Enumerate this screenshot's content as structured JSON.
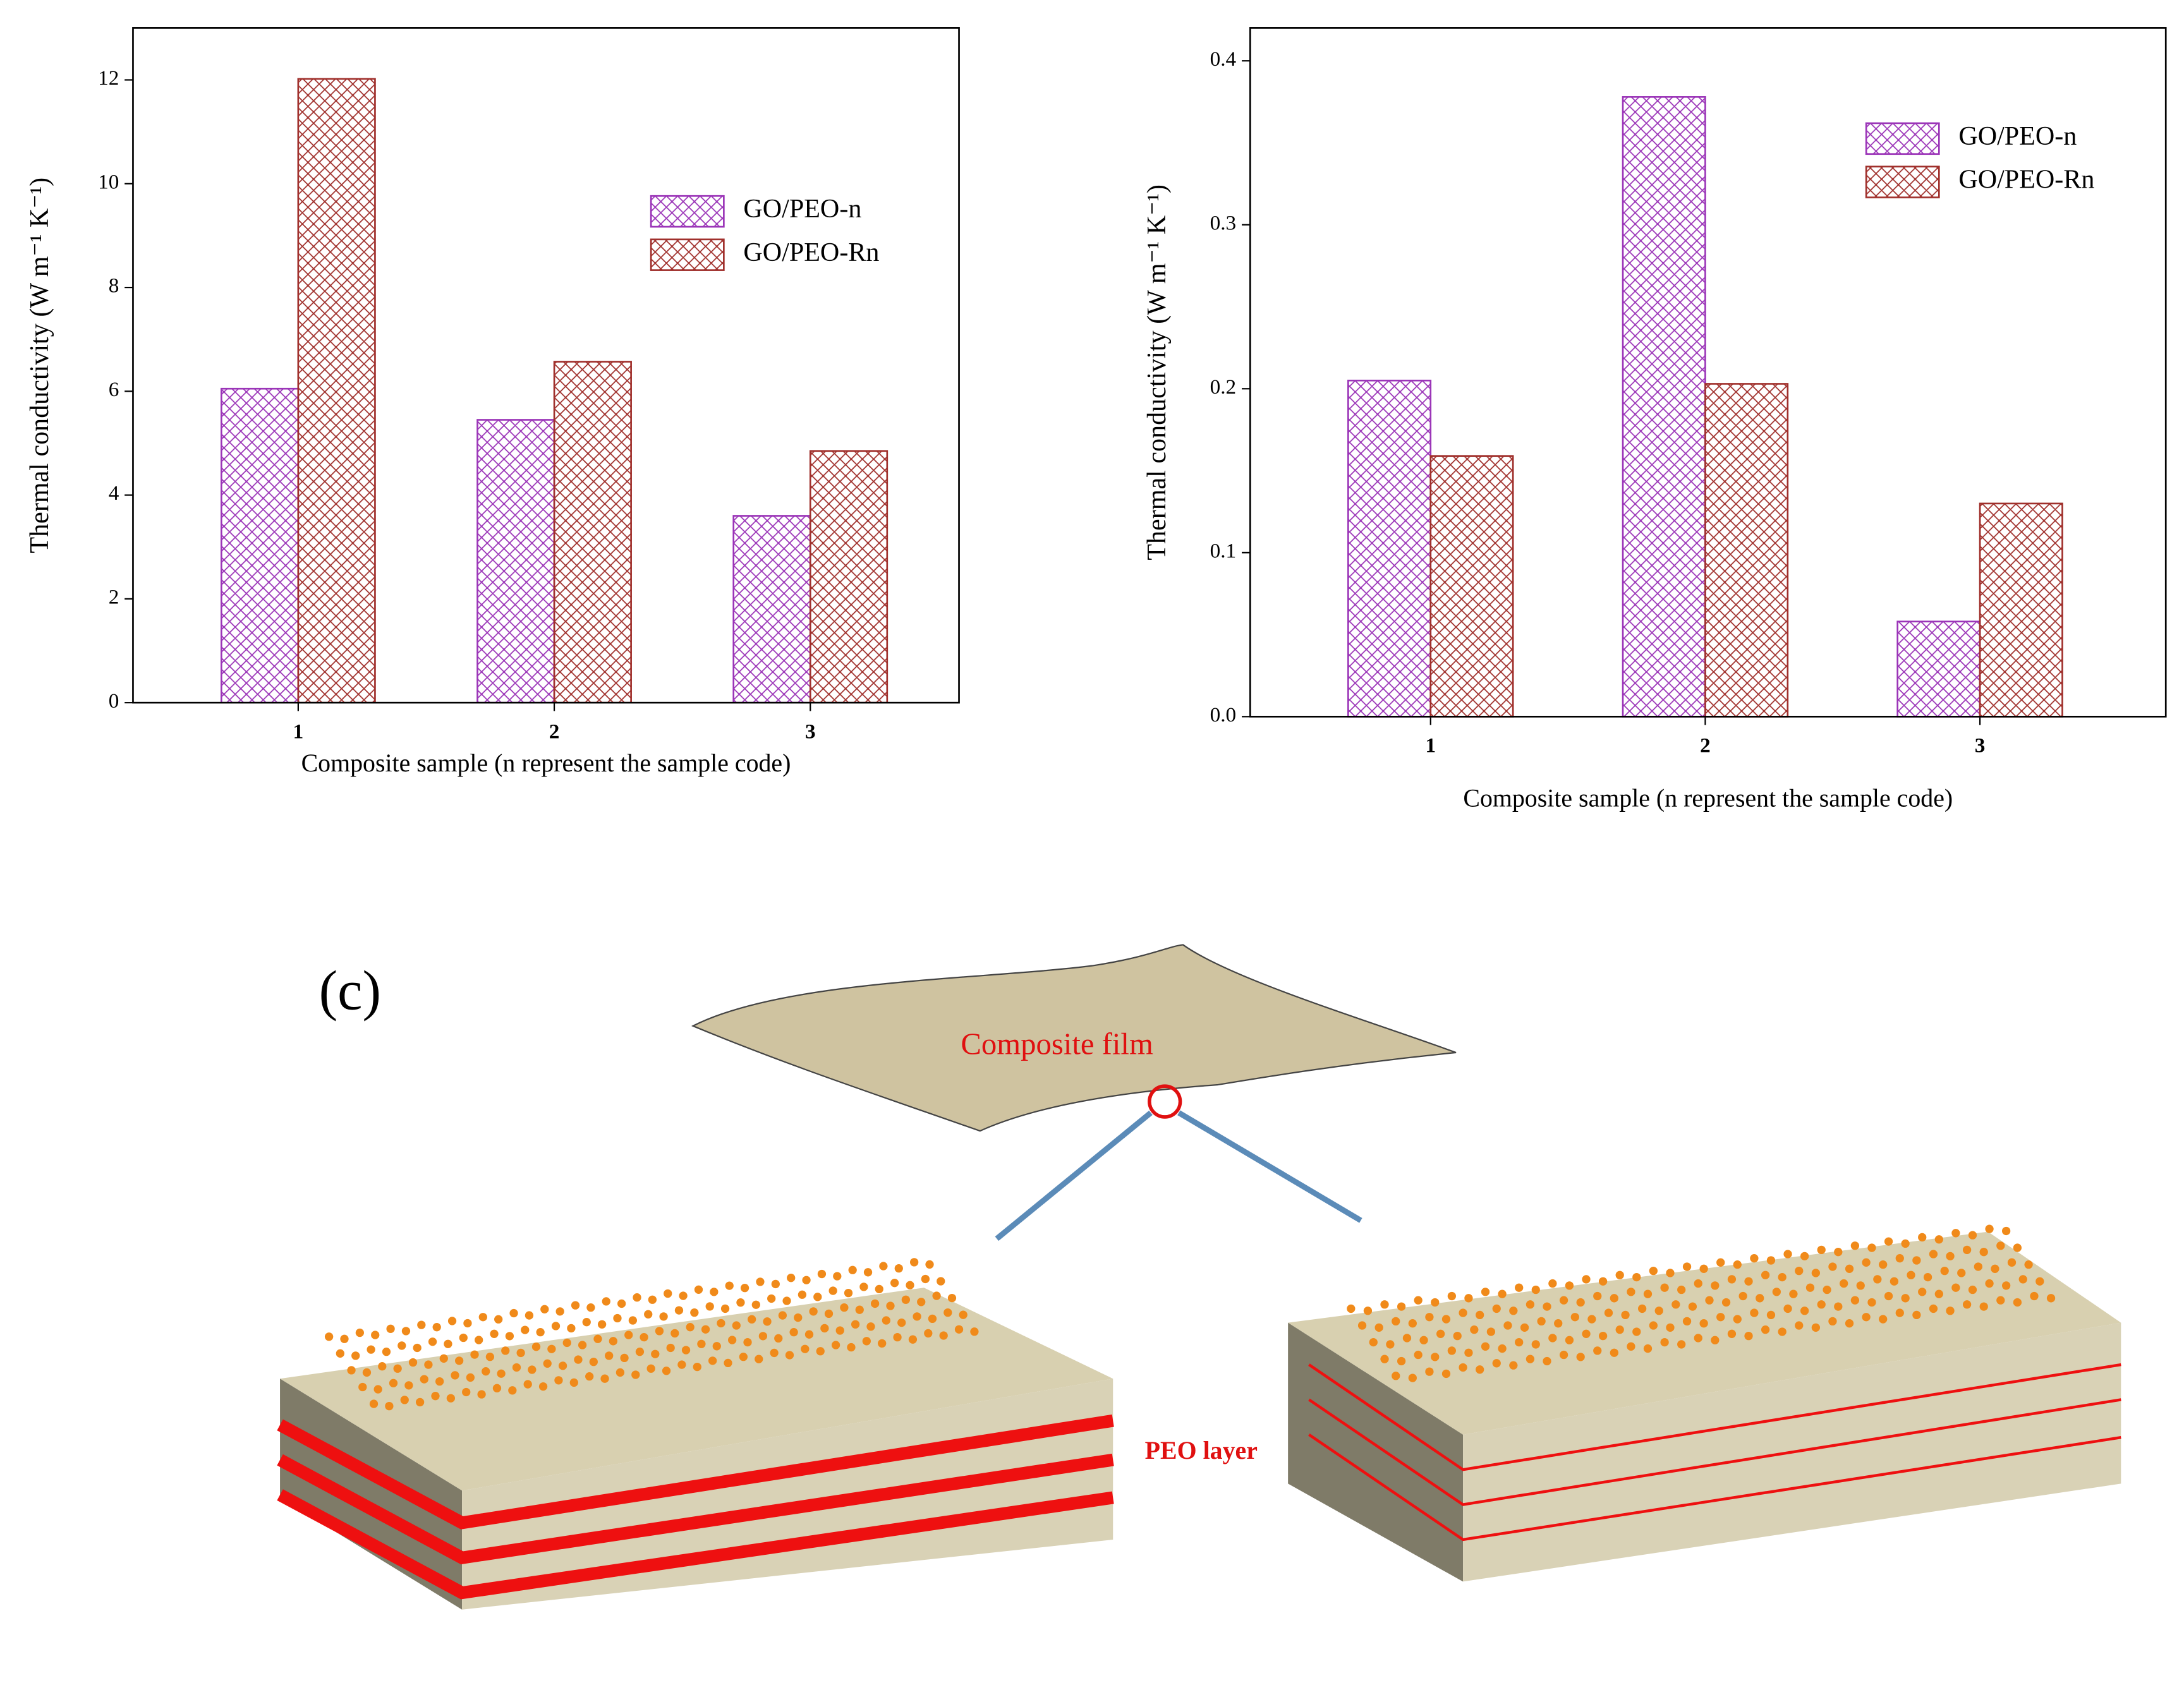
{
  "chart_data": [
    {
      "type": "bar",
      "xlabel": "Composite sample (n represent the sample code)",
      "ylabel": "Thermal conductivity (W m⁻¹ K⁻¹)",
      "categories": [
        "1",
        "2",
        "3"
      ],
      "series": [
        {
          "name": "GO/PEO-n",
          "color": "#9b35b8",
          "values": [
            6.05,
            5.45,
            3.6
          ]
        },
        {
          "name": "GO/PEO-Rn",
          "color": "#a0302c",
          "values": [
            12.02,
            6.57,
            4.85
          ]
        }
      ],
      "ylim": [
        0,
        13
      ],
      "yticks": [
        0,
        2,
        4,
        6,
        8,
        10,
        12
      ]
    },
    {
      "type": "bar",
      "xlabel": "Composite sample (n represent the sample code)",
      "ylabel": "Thermal conductivity (W m⁻¹ K⁻¹)",
      "categories": [
        "1",
        "2",
        "3"
      ],
      "series": [
        {
          "name": "GO/PEO-n",
          "color": "#9b35b8",
          "values": [
            0.205,
            0.378,
            0.058
          ]
        },
        {
          "name": "GO/PEO-Rn",
          "color": "#a0302c",
          "values": [
            0.159,
            0.203,
            0.13
          ]
        }
      ],
      "ylim": [
        0,
        0.42
      ],
      "yticks": [
        {
          "value": 0,
          "label": "0.0"
        },
        0.1,
        0.2,
        0.3,
        0.4
      ]
    }
  ],
  "diagram": {
    "label": "(c)",
    "film": "Composite film",
    "layer": "PEO layer"
  }
}
